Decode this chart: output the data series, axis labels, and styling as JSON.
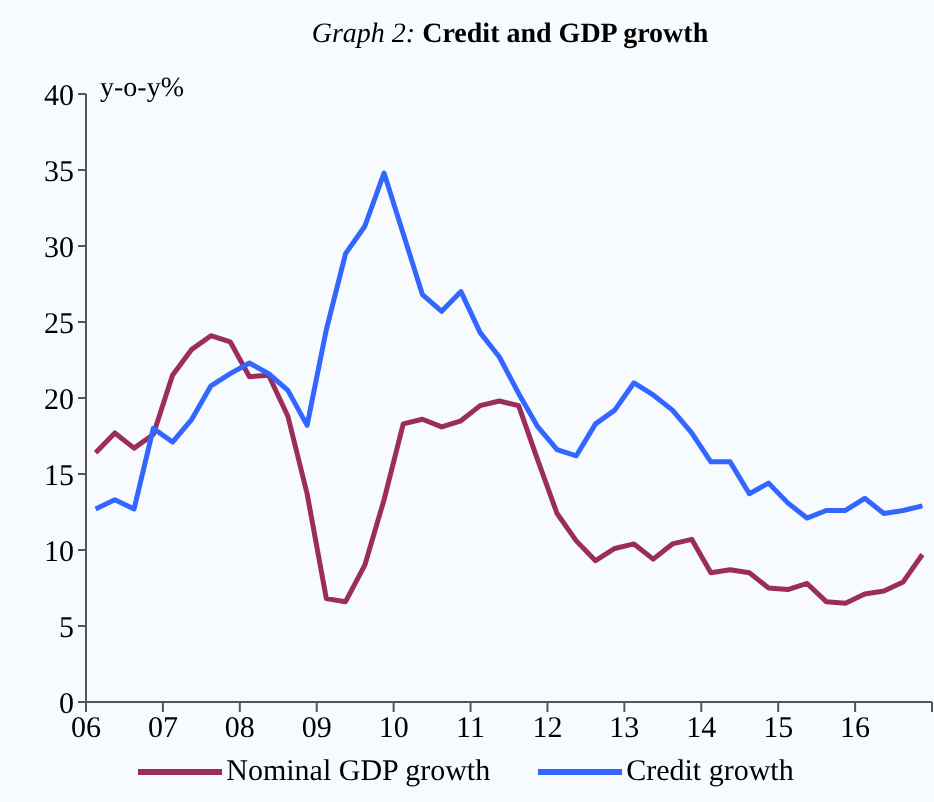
{
  "chart_data": {
    "type": "line",
    "title": "Graph 2: Credit and GDP growth",
    "ylabel": "y-o-y%",
    "x": [
      2006.125,
      2006.375,
      2006.625,
      2006.875,
      2007.125,
      2007.375,
      2007.625,
      2007.875,
      2008.125,
      2008.375,
      2008.625,
      2008.875,
      2009.125,
      2009.375,
      2009.625,
      2009.875,
      2010.125,
      2010.375,
      2010.625,
      2010.875,
      2011.125,
      2011.375,
      2011.625,
      2011.875,
      2012.125,
      2012.375,
      2012.625,
      2012.875,
      2013.125,
      2013.375,
      2013.625,
      2013.875,
      2014.125,
      2014.375,
      2014.625,
      2014.875,
      2015.125,
      2015.375,
      2015.625,
      2015.875,
      2016.125,
      2016.375,
      2016.625,
      2016.875
    ],
    "series": [
      {
        "name": "Nominal GDP growth",
        "color": "#9b2d5a",
        "values": [
          16.4,
          17.7,
          16.7,
          17.6,
          21.5,
          23.2,
          24.1,
          23.7,
          21.4,
          21.5,
          18.8,
          13.7,
          6.8,
          6.6,
          9.0,
          13.3,
          18.3,
          18.6,
          18.1,
          18.5,
          19.5,
          19.8,
          19.5,
          15.9,
          12.4,
          10.6,
          9.3,
          10.1,
          10.4,
          9.4,
          10.4,
          10.7,
          8.5,
          8.7,
          8.5,
          7.5,
          7.4,
          7.8,
          6.6,
          6.5,
          7.1,
          7.3,
          7.9,
          9.7
        ]
      },
      {
        "name": "Credit growth",
        "color": "#3366ff",
        "values": [
          12.7,
          13.3,
          12.7,
          18.0,
          17.1,
          18.6,
          20.8,
          21.6,
          22.3,
          21.6,
          20.5,
          18.2,
          24.5,
          29.5,
          31.3,
          34.8,
          30.8,
          26.8,
          25.7,
          27.0,
          24.3,
          22.7,
          20.3,
          18.1,
          16.6,
          16.2,
          18.3,
          19.2,
          21.0,
          20.2,
          19.2,
          17.7,
          15.8,
          15.8,
          13.7,
          14.4,
          13.1,
          12.1,
          12.6,
          12.6,
          13.4,
          12.4,
          12.6,
          12.9
        ]
      }
    ],
    "xlim": [
      2006,
      2017
    ],
    "xticks": [
      {
        "value": 2006,
        "label": "06"
      },
      {
        "value": 2007,
        "label": "07"
      },
      {
        "value": 2008,
        "label": "08"
      },
      {
        "value": 2009,
        "label": "09"
      },
      {
        "value": 2010,
        "label": "10"
      },
      {
        "value": 2011,
        "label": "11"
      },
      {
        "value": 2012,
        "label": "12"
      },
      {
        "value": 2013,
        "label": "13"
      },
      {
        "value": 2014,
        "label": "14"
      },
      {
        "value": 2015,
        "label": "15"
      },
      {
        "value": 2016,
        "label": "16"
      },
      {
        "value": 2017,
        "label": null
      }
    ],
    "ylim": [
      0,
      40
    ],
    "yticks": [
      0,
      5,
      10,
      15,
      20,
      25,
      30,
      35,
      40
    ],
    "grid": false,
    "legend": "bottom",
    "marker": "none",
    "line_style": "solid"
  }
}
